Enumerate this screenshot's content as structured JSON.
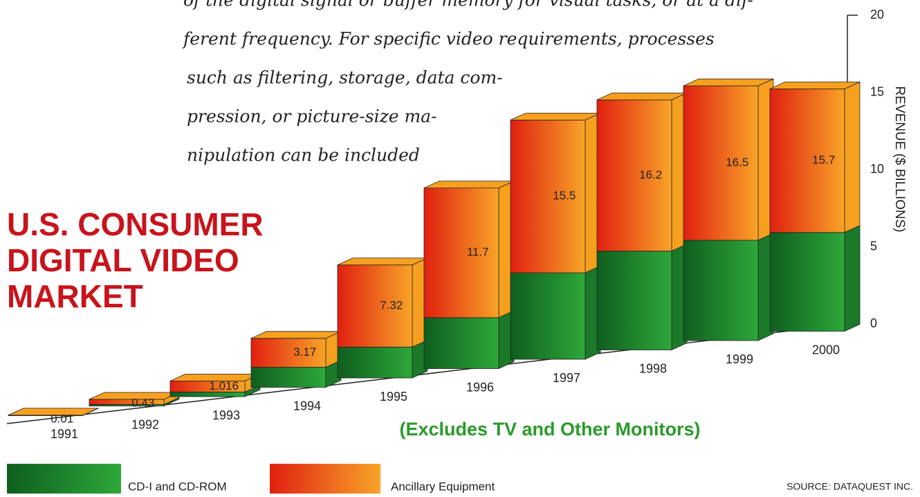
{
  "chart_data": {
    "type": "bar3d_stacked",
    "title": "U.S. CONSUMER DIGITAL VIDEO MARKET",
    "subtitle": "(Excludes TV and Other Monitors)",
    "y_label": "REVENUE ($ BILLIONS)",
    "source": "SOURCE: DATAQUEST INC.",
    "text_lines": [
      "of the digital signal or buffer memory for visual tasks, or at a dif-",
      "ferent frequency. For specific video requirements, processes",
      "such as filtering, storage, data com-",
      "pression, or picture-size ma-",
      "nipulation can be included"
    ],
    "categories": [
      "1991",
      "1992",
      "1993",
      "1994",
      "1995",
      "1996",
      "1997",
      "1998",
      "1999",
      "2000"
    ],
    "series": [
      {
        "name": "CD-I and CD-ROM",
        "color": "#1f8a2c",
        "values": [
          0.003,
          0.1,
          0.3,
          1.3,
          2.0,
          3.3,
          5.6,
          6.4,
          6.5,
          6.4
        ]
      }
    ],
    "totals_name": "Ancillary Equipment",
    "totals_color": "#f7a020",
    "totals": [
      0.01,
      0.43,
      1.016,
      3.17,
      7.32,
      11.7,
      15.5,
      16.2,
      16.5,
      15.7
    ],
    "ylim": [
      0,
      20
    ],
    "yticks": [
      0,
      5,
      10,
      15,
      20
    ]
  }
}
